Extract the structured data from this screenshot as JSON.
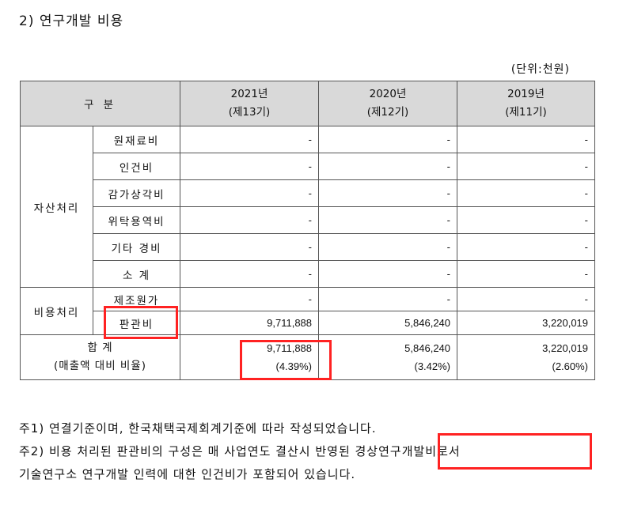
{
  "section_title": "2) 연구개발 비용",
  "unit": "(단위:천원)",
  "table": {
    "header": {
      "category": "구 분",
      "years": [
        {
          "year": "2021년",
          "period": "(제13기)"
        },
        {
          "year": "2020년",
          "period": "(제12기)"
        },
        {
          "year": "2019년",
          "period": "(제11기)"
        }
      ]
    },
    "asset_group": {
      "label": "자산처리",
      "rows": [
        {
          "label": "원재료비",
          "values": [
            "-",
            "-",
            "-"
          ]
        },
        {
          "label": "인건비",
          "values": [
            "-",
            "-",
            "-"
          ]
        },
        {
          "label": "감가상각비",
          "values": [
            "-",
            "-",
            "-"
          ]
        },
        {
          "label": "위탁용역비",
          "values": [
            "-",
            "-",
            "-"
          ]
        },
        {
          "label": "기타 경비",
          "values": [
            "-",
            "-",
            "-"
          ]
        },
        {
          "label": "소 계",
          "values": [
            "-",
            "-",
            "-"
          ]
        }
      ]
    },
    "expense_group": {
      "label": "비용처리",
      "rows": [
        {
          "label": "제조원가",
          "values": [
            "-",
            "-",
            "-"
          ]
        },
        {
          "label": "판관비",
          "values": [
            "9,711,888",
            "5,846,240",
            "3,220,019"
          ]
        }
      ]
    },
    "total": {
      "label": "합 계",
      "ratio_label": "(매출액 대비 비율)",
      "values": [
        "9,711,888",
        "5,846,240",
        "3,220,019"
      ],
      "ratios": [
        "(4.39%)",
        "(3.42%)",
        "(2.60%)"
      ]
    }
  },
  "notes": [
    "주1) 연결기준이며, 한국채택국제회계기준에 따라 작성되었습니다.",
    "주2) 비용 처리된 판관비의 구성은 매 사업연도 결산시 반영된 경상연구개발비로서",
    "기술연구소 연구개발 인력에 대한 인건비가 포함되어 있습니다."
  ],
  "highlight_color": "#ff2222"
}
